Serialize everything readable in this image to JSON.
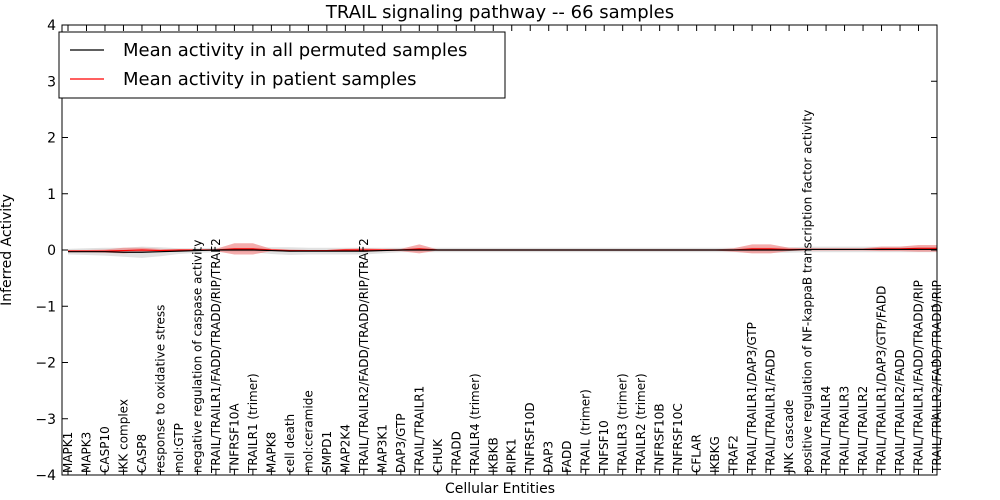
{
  "chart_data": {
    "type": "line",
    "title": "TRAIL signaling pathway -- 66 samples",
    "xlabel": "Cellular Entities",
    "ylabel": "Inferred Activity",
    "ylim": [
      -4,
      4
    ],
    "yticks": [
      -4,
      -3,
      -2,
      -1,
      0,
      1,
      2,
      3,
      4
    ],
    "legend_position": "top-left",
    "categories": [
      "MAPK1",
      "MAPK3",
      "CASP10",
      "IKK complex",
      "CASP8",
      "response to oxidative stress",
      "mol:GTP",
      "negative regulation of caspase activity",
      "TRAIL/TRAILR1/FADD/TRADD/RIP/TRAF2",
      "TNFRSF10A",
      "TRAILR1 (trimer)",
      "MAPK8",
      "cell death",
      "mol:ceramide",
      "SMPD1",
      "MAP2K4",
      "TRAIL/TRAILR2/FADD/TRADD/RIP/TRAF2",
      "MAP3K1",
      "DAP3/GTP",
      "TRAIL/TRAILR1",
      "CHUK",
      "TRADD",
      "TRAILR4 (trimer)",
      "IKBKB",
      "RIPK1",
      "TNFRSF10D",
      "DAP3",
      "FADD",
      "TRAIL (trimer)",
      "TNFSF10",
      "TRAILR3 (trimer)",
      "TRAILR2 (trimer)",
      "TNFRSF10B",
      "TNFRSF10C",
      "CFLAR",
      "IKBKG",
      "TRAF2",
      "TRAIL/TRAILR1/DAP3/GTP",
      "TRAIL/TRAILR1/FADD",
      "JNK cascade",
      "positive regulation of NF-kappaB transcription factor activity",
      "TRAIL/TRAILR4",
      "TRAIL/TRAILR3",
      "TRAIL/TRAILR2",
      "TRAIL/TRAILR1/DAP3/GTP/FADD",
      "TRAIL/TRAILR2/FADD",
      "TRAIL/TRAILR1/FADD/TRADD/RIP",
      "TRAIL/TRAILR2/FADD/TRADD/RIP"
    ],
    "series": [
      {
        "name": "Mean activity in all permuted samples",
        "color": "#000000",
        "band_color": "#c8c8c8",
        "values": [
          -0.03,
          -0.03,
          -0.03,
          -0.04,
          -0.04,
          -0.03,
          -0.02,
          -0.01,
          0,
          0,
          0,
          -0.01,
          -0.02,
          -0.02,
          -0.02,
          -0.02,
          -0.02,
          -0.01,
          0,
          0,
          0,
          0,
          0,
          0,
          0,
          0,
          0,
          0,
          0,
          0,
          0,
          0,
          0,
          0,
          0,
          0,
          0,
          0,
          0,
          0,
          0.01,
          0.01,
          0.01,
          0.01,
          0.01,
          0.01,
          0.01,
          0.01
        ],
        "spread": [
          0.05,
          0.06,
          0.07,
          0.08,
          0.1,
          0.08,
          0.05,
          0.04,
          0.04,
          0.04,
          0.04,
          0.06,
          0.07,
          0.06,
          0.06,
          0.06,
          0.06,
          0.05,
          0.04,
          0.04,
          0.04,
          0.04,
          0.04,
          0.04,
          0.04,
          0.04,
          0.04,
          0.04,
          0.04,
          0.04,
          0.04,
          0.04,
          0.04,
          0.04,
          0.04,
          0.04,
          0.04,
          0.05,
          0.05,
          0.05,
          0.05,
          0.05,
          0.05,
          0.05,
          0.05,
          0.05,
          0.05,
          0.05
        ]
      },
      {
        "name": "Mean activity in patient samples",
        "color": "#ff0000",
        "band_color": "#f08080",
        "values": [
          -0.02,
          -0.02,
          -0.02,
          -0.01,
          0,
          -0.01,
          0,
          0,
          0,
          0.02,
          0.02,
          0,
          -0.01,
          -0.01,
          -0.01,
          0,
          0,
          0,
          0,
          0.02,
          0,
          0,
          0,
          0,
          0,
          0,
          0,
          0,
          0,
          0,
          0,
          0,
          0,
          0,
          0,
          0,
          0,
          0.02,
          0.02,
          0.01,
          0.01,
          0.01,
          0.01,
          0.01,
          0.02,
          0.02,
          0.03,
          0.03
        ],
        "spread": [
          0.02,
          0.02,
          0.03,
          0.05,
          0.04,
          0.03,
          0.01,
          0.01,
          0.02,
          0.1,
          0.1,
          0.02,
          0.02,
          0.01,
          0.01,
          0.02,
          0.03,
          0.02,
          0.02,
          0.08,
          0.01,
          0.01,
          0.01,
          0.01,
          0.01,
          0.01,
          0.01,
          0.01,
          0.01,
          0.01,
          0.01,
          0.01,
          0.01,
          0.01,
          0.01,
          0.01,
          0.03,
          0.08,
          0.08,
          0.03,
          0.02,
          0.02,
          0.02,
          0.02,
          0.04,
          0.04,
          0.06,
          0.06
        ]
      }
    ]
  }
}
